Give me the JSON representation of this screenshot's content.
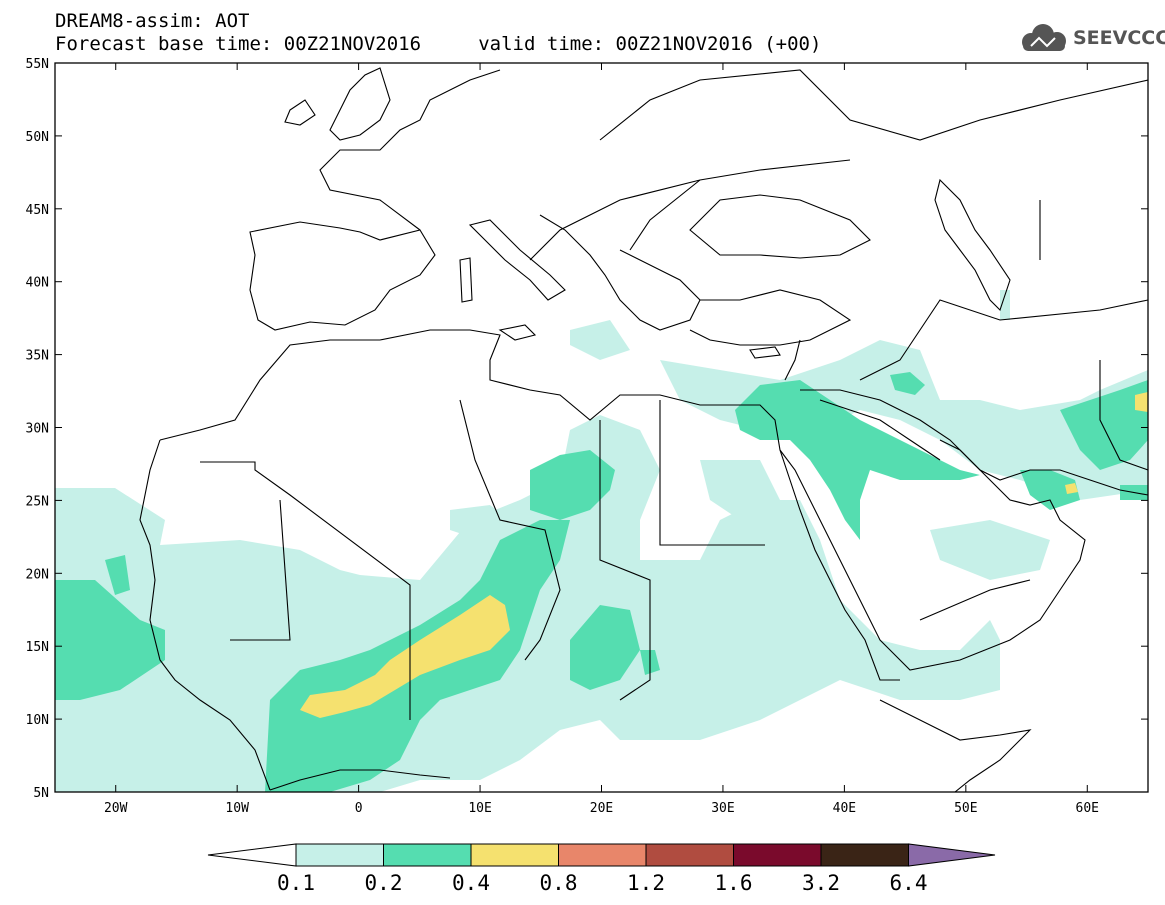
{
  "header": {
    "title": "DREAM8-assim: AOT",
    "subtitle": "Forecast base time: 00Z21NOV2016     valid time: 00Z21NOV2016 (+00)",
    "logo_text": "SEEVCCC"
  },
  "axes": {
    "lat_labels": [
      "55N",
      "50N",
      "45N",
      "40N",
      "35N",
      "30N",
      "25N",
      "20N",
      "15N",
      "10N",
      "5N"
    ],
    "lon_labels": [
      "20W",
      "10W",
      "0",
      "10E",
      "20E",
      "30E",
      "40E",
      "50E",
      "60E"
    ]
  },
  "colorbar": {
    "labels": [
      "0.1",
      "0.2",
      "0.4",
      "0.8",
      "1.2",
      "1.6",
      "3.2",
      "6.4"
    ],
    "colors": [
      "#ffffff",
      "#c6f0e8",
      "#55ddb0",
      "#f5e16f",
      "#e8866a",
      "#b04c40",
      "#7a0a2c",
      "#3a2416",
      "#8a6aa8"
    ]
  },
  "map": {
    "variable": "AOT",
    "lon_range": [
      -25,
      65
    ],
    "lat_range": [
      5,
      55
    ],
    "levels": {
      "low": "0.1-0.2",
      "mid": "0.2-0.4",
      "high": "0.4-0.8"
    }
  }
}
